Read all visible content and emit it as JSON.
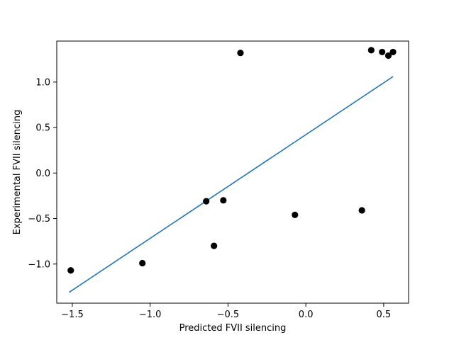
{
  "chart_data": {
    "type": "scatter",
    "title": "",
    "xlabel": "Predicted FVII silencing",
    "ylabel": "Experimental FVII silencing",
    "xlim": [
      -1.6,
      0.66
    ],
    "ylim": [
      -1.43,
      1.45
    ],
    "xticks": [
      -1.5,
      -1.0,
      -0.5,
      0.0,
      0.5
    ],
    "xtick_labels": [
      "−1.5",
      "−1.0",
      "−0.5",
      "0.0",
      "0.5"
    ],
    "yticks": [
      -1.0,
      -0.5,
      0.0,
      0.5,
      1.0
    ],
    "ytick_labels": [
      "−1.0",
      "−0.5",
      "0.0",
      "0.5",
      "1.0"
    ],
    "grid": false,
    "points": [
      {
        "x": -1.51,
        "y": -1.07
      },
      {
        "x": -1.05,
        "y": -0.99
      },
      {
        "x": -0.64,
        "y": -0.31
      },
      {
        "x": -0.59,
        "y": -0.8
      },
      {
        "x": -0.53,
        "y": -0.3
      },
      {
        "x": -0.42,
        "y": 1.32
      },
      {
        "x": -0.07,
        "y": -0.46
      },
      {
        "x": 0.36,
        "y": -0.41
      },
      {
        "x": 0.42,
        "y": 1.35
      },
      {
        "x": 0.49,
        "y": 1.33
      },
      {
        "x": 0.53,
        "y": 1.29
      },
      {
        "x": 0.56,
        "y": 1.33
      }
    ],
    "fit_line": {
      "x": [
        -1.52,
        0.56
      ],
      "y": [
        -1.31,
        1.06
      ]
    },
    "colors": {
      "points": "#000000",
      "fit_line": "#1f77b4"
    }
  }
}
